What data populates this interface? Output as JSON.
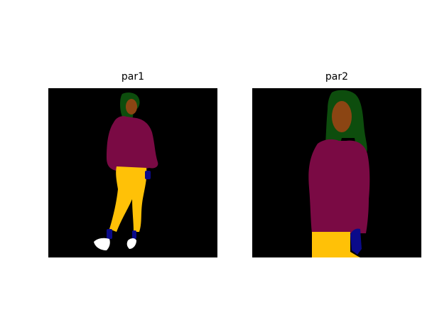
{
  "panels": [
    {
      "title": "par1"
    },
    {
      "title": "par2"
    }
  ],
  "colors": {
    "background": "#000000",
    "hair": "#0d4d0d",
    "face": "#8b4513",
    "top": "#7a0a44",
    "pants": "#ffc107",
    "hands": "#0a0a8a",
    "shoes": "#ffffff"
  }
}
